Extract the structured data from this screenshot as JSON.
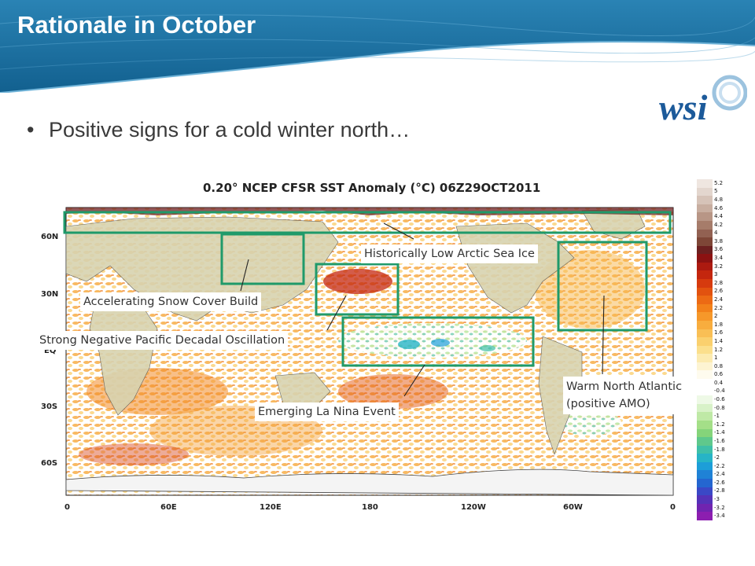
{
  "slide": {
    "title": "Rationale in October",
    "bullet": "Positive signs for a cold winter north…",
    "logo_text": "wsi"
  },
  "map": {
    "title": "0.20° NCEP CFSR SST Anomaly (°C) 06Z29OCT2011",
    "lat_labels": [
      "60N",
      "30N",
      "EQ",
      "30S",
      "60S"
    ],
    "lon_labels": [
      "0",
      "60E",
      "120E",
      "180",
      "120W",
      "60W",
      "0"
    ],
    "box_color": "#1f9a6a"
  },
  "callouts": {
    "arctic": "Historically Low Arctic Sea Ice",
    "snow": "Accelerating Snow Cover Build",
    "pdo": "Strong Negative Pacific Decadal Oscillation",
    "lanina": "Emerging La Nina Event",
    "atlantic_line1": "Warm North Atlantic",
    "atlantic_line2": "(positive AMO)"
  },
  "colorbar": {
    "labels": [
      "5.2",
      "5",
      "4.8",
      "4.6",
      "4.4",
      "4.2",
      "4",
      "3.8",
      "3.6",
      "3.4",
      "3.2",
      "3",
      "2.8",
      "2.6",
      "2.4",
      "2.2",
      "2",
      "1.8",
      "1.6",
      "1.4",
      "1.2",
      "1",
      "0.8",
      "0.6",
      "0.4",
      "-0.4",
      "-0.6",
      "-0.8",
      "-1",
      "-1.2",
      "-1.4",
      "-1.6",
      "-1.8",
      "-2",
      "-2.2",
      "-2.4",
      "-2.6",
      "-2.8",
      "-3",
      "-3.2",
      "-3.4"
    ],
    "colors": [
      "#efe6e0",
      "#e3d6ce",
      "#d6c3b8",
      "#c8aea0",
      "#b89686",
      "#a67c6a",
      "#926152",
      "#7e4637",
      "#6c2020",
      "#8c1212",
      "#ac1a10",
      "#c4260e",
      "#d63a0e",
      "#e2520f",
      "#ec6a14",
      "#f2811a",
      "#f6982a",
      "#f8ad3e",
      "#f9bf55",
      "#fad06e",
      "#fbdf8c",
      "#fcebb0",
      "#fdf4d2",
      "#fefbee",
      "#ffffff",
      "#ffffff",
      "#eef9e6",
      "#d8f2c8",
      "#bfe9a6",
      "#a4df88",
      "#85d47a",
      "#5fc88c",
      "#3fbfa8",
      "#27b4c6",
      "#1d9ed8",
      "#1f82d6",
      "#2466d0",
      "#3a48c6",
      "#5432b8",
      "#7024b0",
      "#8c1eb0"
    ]
  }
}
